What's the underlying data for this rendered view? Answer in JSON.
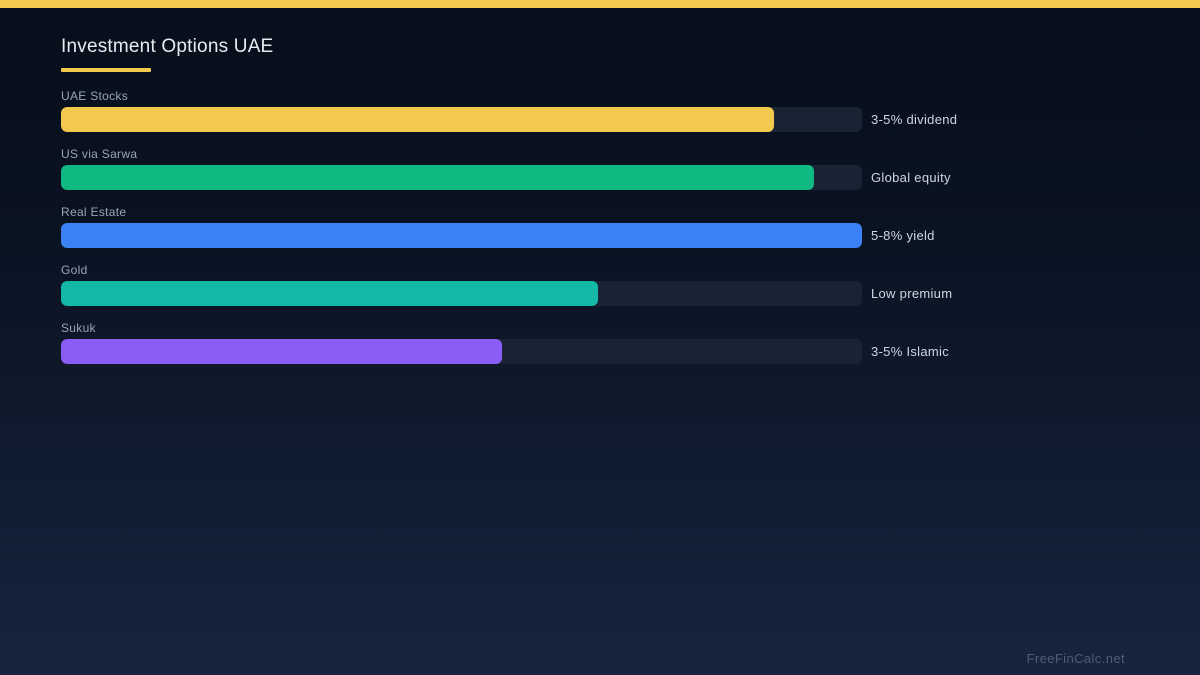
{
  "page": {
    "title": "Investment Options UAE",
    "watermark": "FreeFinCalc.net",
    "accent_color": "#f2c94c",
    "background_top": "#070e1b",
    "background_bottom": "#16243e"
  },
  "chart_data": {
    "type": "bar",
    "orientation": "horizontal",
    "title": "Investment Options UAE",
    "categories": [
      "UAE Stocks",
      "US via Sarwa",
      "Real Estate",
      "Gold",
      "Sukuk"
    ],
    "values": [
      89,
      94,
      100,
      67,
      55
    ],
    "value_unit": "percent of track width (estimated)",
    "annotations": [
      "3-5% dividend",
      "Global equity",
      "5-8% yield",
      "Low premium",
      "3-5% Islamic"
    ],
    "bar_colors": [
      "#f2c94c",
      "#10b981",
      "#3b82f6",
      "#14b8a6",
      "#8b5cf6"
    ],
    "track_color": "#1a2334",
    "xlim": [
      0,
      100
    ],
    "grid": false,
    "legend": false
  }
}
